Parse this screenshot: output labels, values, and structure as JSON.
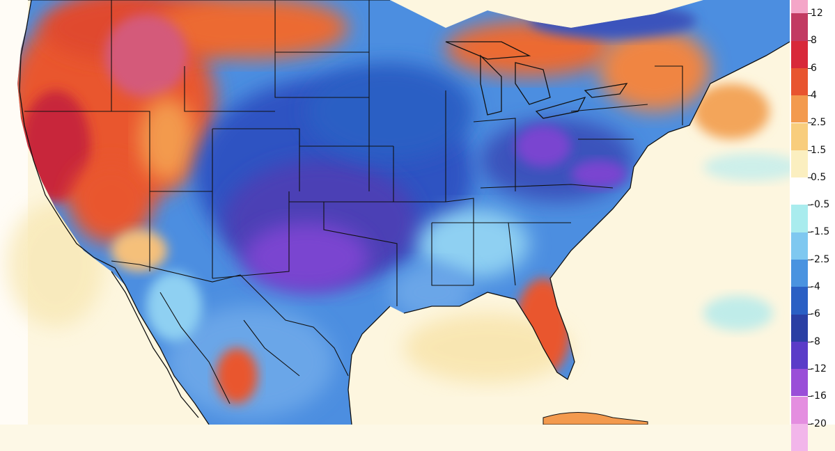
{
  "legend": {
    "labels": [
      "12",
      "8",
      "6",
      "4",
      "2.5",
      "1.5",
      "0.5",
      "-0.5",
      "-1.5",
      "-2.5",
      "-4",
      "-6",
      "-8",
      "-12",
      "-16",
      "-20"
    ],
    "colors": [
      "#f4a6c8",
      "#c23a62",
      "#d8283a",
      "#e8542f",
      "#f39a4e",
      "#f8cd7d",
      "#fbefc0",
      "#ffffff",
      "#a9ecee",
      "#7fc8f0",
      "#4a93e0",
      "#2a5fc4",
      "#2a3fa4",
      "#5a3cc8",
      "#9a4ed8",
      "#e48ee0",
      "#f2b6ea"
    ]
  },
  "map": {
    "land_colors": {
      "warm_west": "#e9562d",
      "hot_west": "#c8283b",
      "pink_rockies": "#d45a7a",
      "cold_plains": "#2d52c2",
      "very_cold": "#4b3fb5",
      "purple_core": "#7a45d0",
      "mid_blue": "#4c8ee0",
      "light_blue": "#8fd0f2",
      "mild": "#f5c07a",
      "ocean_mild": "#fbf0c6",
      "ocean_white": "#ffffff"
    }
  }
}
